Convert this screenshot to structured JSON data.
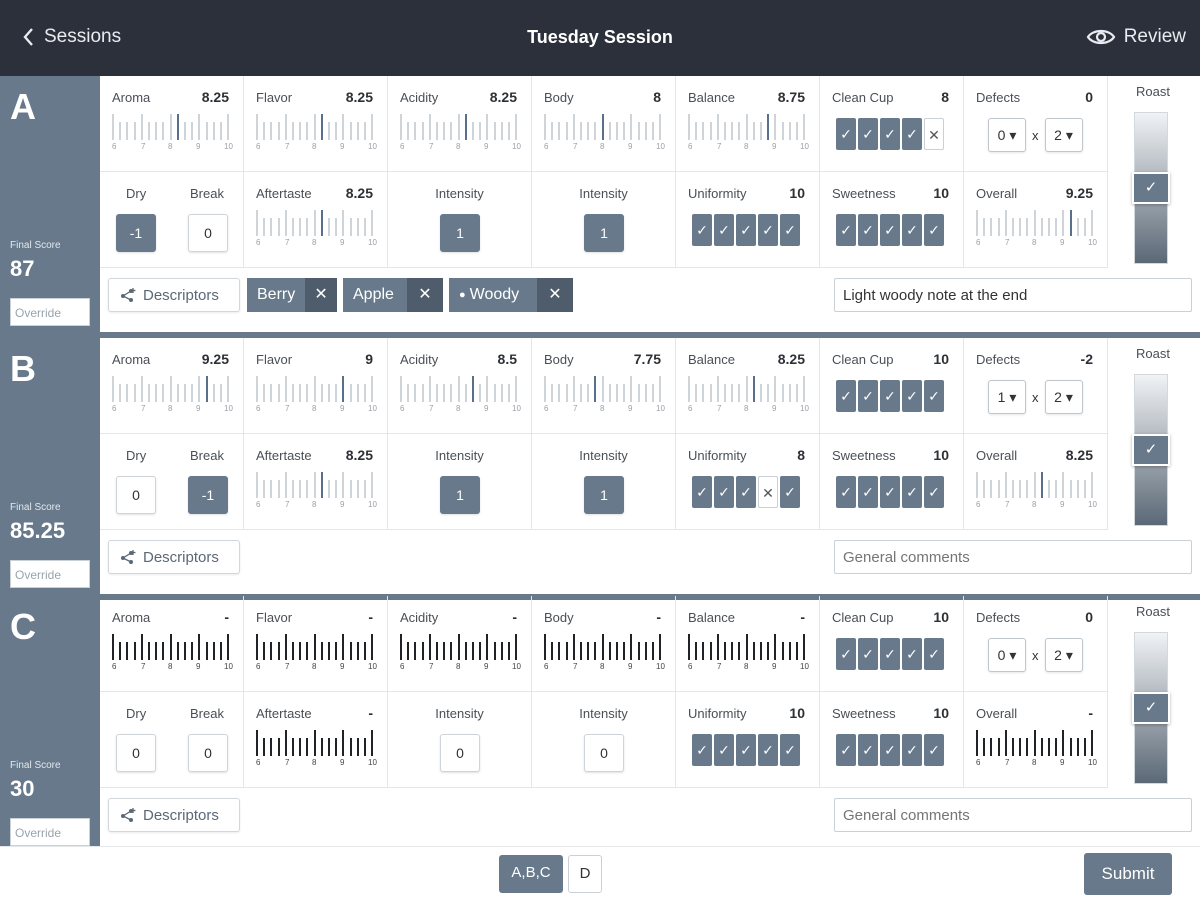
{
  "header": {
    "back_label": "Sessions",
    "title": "Tuesday Session",
    "review_label": "Review"
  },
  "scale_numbers": [
    "6",
    "7",
    "8",
    "9",
    "10"
  ],
  "labels": {
    "aroma": "Aroma",
    "flavor": "Flavor",
    "acidity": "Acidity",
    "body": "Body",
    "balance": "Balance",
    "clean_cup": "Clean Cup",
    "defects": "Defects",
    "roast": "Roast",
    "dry": "Dry",
    "break": "Break",
    "aftertaste": "Aftertaste",
    "intensity": "Intensity",
    "uniformity": "Uniformity",
    "sweetness": "Sweetness",
    "overall": "Overall",
    "final_score": "Final Score",
    "override": "Override",
    "descriptors": "Descriptors",
    "times": "x"
  },
  "samples": [
    {
      "letter": "A",
      "final_score": "87",
      "aroma": "8.25",
      "flavor": "8.25",
      "acidity": "8.25",
      "body": "8",
      "balance": "8.75",
      "clean_cup": "8",
      "defects": "0",
      "defect_cups": "0",
      "defect_intensity": "2",
      "dry": "-1",
      "break": "0",
      "aftertaste": "8.25",
      "acidity_intensity": "1",
      "body_intensity": "1",
      "uniformity": "10",
      "sweetness": "10",
      "overall": "9.25",
      "clean_cup_marks": [
        true,
        true,
        true,
        true,
        false
      ],
      "uniformity_marks": [
        true,
        true,
        true,
        true,
        true
      ],
      "sweetness_marks": [
        true,
        true,
        true,
        true,
        true
      ],
      "descriptors": [
        "Berry",
        "Apple",
        "Woody"
      ],
      "comment": "Light woody note at the end",
      "comment_placeholder": "",
      "roast_level": 0.5
    },
    {
      "letter": "B",
      "final_score": "85.25",
      "aroma": "9.25",
      "flavor": "9",
      "acidity": "8.5",
      "body": "7.75",
      "balance": "8.25",
      "clean_cup": "10",
      "defects": "-2",
      "defect_cups": "1",
      "defect_intensity": "2",
      "dry": "0",
      "break": "-1",
      "aftertaste": "8.25",
      "acidity_intensity": "1",
      "body_intensity": "1",
      "uniformity": "8",
      "sweetness": "10",
      "overall": "8.25",
      "clean_cup_marks": [
        true,
        true,
        true,
        true,
        true
      ],
      "uniformity_marks": [
        true,
        true,
        true,
        false,
        true
      ],
      "sweetness_marks": [
        true,
        true,
        true,
        true,
        true
      ],
      "descriptors": [],
      "comment": "",
      "comment_placeholder": "General comments",
      "roast_level": 0.5
    },
    {
      "letter": "C",
      "final_score": "30",
      "aroma": "-",
      "flavor": "-",
      "acidity": "-",
      "body": "-",
      "balance": "-",
      "clean_cup": "10",
      "defects": "0",
      "defect_cups": "0",
      "defect_intensity": "2",
      "dry": "0",
      "break": "0",
      "aftertaste": "-",
      "acidity_intensity": "0",
      "body_intensity": "0",
      "uniformity": "10",
      "sweetness": "10",
      "overall": "-",
      "clean_cup_marks": [
        true,
        true,
        true,
        true,
        true
      ],
      "uniformity_marks": [
        true,
        true,
        true,
        true,
        true
      ],
      "sweetness_marks": [
        true,
        true,
        true,
        true,
        true
      ],
      "descriptors": [],
      "comment": "",
      "comment_placeholder": "General comments",
      "roast_level": 0.5
    }
  ],
  "footer": {
    "page_active": "A,B,C",
    "page_other": "D",
    "submit_label": "Submit"
  },
  "colors": {
    "accent": "#67798b",
    "header_bg": "#2b303b"
  }
}
